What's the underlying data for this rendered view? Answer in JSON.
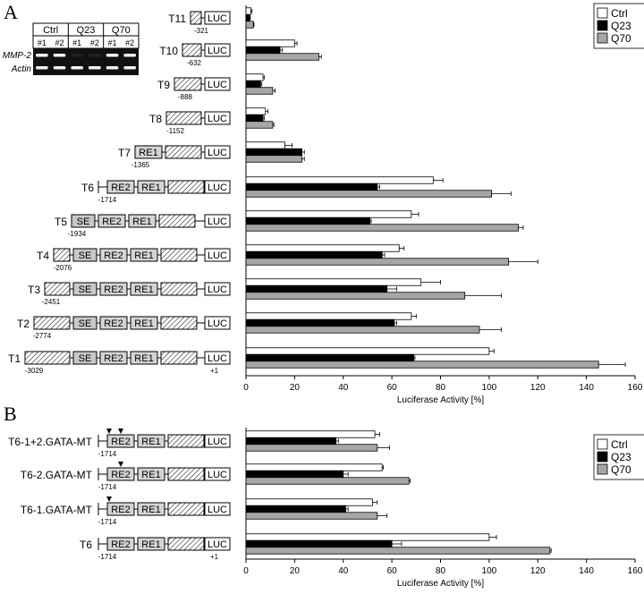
{
  "panels": [
    {
      "letter": "A"
    },
    {
      "letter": "B"
    }
  ],
  "gel": {
    "groups": [
      "Ctrl",
      "Q23",
      "Q70"
    ],
    "lanes": [
      "#1",
      "#2",
      "#1",
      "#2",
      "#1",
      "#2"
    ],
    "rows": [
      "MMP-2",
      "Actin"
    ]
  },
  "elements": {
    "luc": "LUC",
    "re1": "RE1",
    "re2": "RE2",
    "se": "SE",
    "plus1": "+1"
  },
  "chart_data": [
    {
      "type": "bar",
      "panel": "A",
      "orientation": "horizontal",
      "categories": [
        "T11",
        "T10",
        "T9",
        "T8",
        "T7",
        "T6",
        "T5",
        "T4",
        "T3",
        "T2",
        "T1"
      ],
      "positions": [
        "-321",
        "-632",
        "-888",
        "-1152",
        "-1365",
        "-1714",
        "-1934",
        "-2076",
        "-2451",
        "-2774",
        "-3029"
      ],
      "series": [
        {
          "name": "Ctrl",
          "values": [
            2,
            20,
            7,
            8,
            16,
            77,
            68,
            63,
            72,
            68,
            100
          ],
          "errors": [
            0.5,
            1,
            0.5,
            1,
            3,
            4,
            3,
            2,
            8,
            2,
            2
          ]
        },
        {
          "name": "Q23",
          "values": [
            1.5,
            14,
            6,
            7,
            23,
            54,
            51,
            56,
            58,
            61,
            69
          ],
          "errors": [
            0.3,
            1,
            0.5,
            0.5,
            1,
            1,
            0.5,
            1,
            4,
            1,
            0.5
          ]
        },
        {
          "name": "Q70",
          "values": [
            3,
            30,
            11,
            11,
            23,
            101,
            112,
            108,
            90,
            96,
            145
          ],
          "errors": [
            0.3,
            1,
            1,
            0.5,
            1,
            8,
            2,
            12,
            15,
            9,
            11
          ]
        }
      ],
      "xlabel": "Luciferase Activity [%]",
      "xlim": [
        0,
        160
      ],
      "xticks": [
        0,
        20,
        40,
        60,
        80,
        100,
        120,
        140,
        160
      ],
      "legend": "top-right"
    },
    {
      "type": "bar",
      "panel": "B",
      "orientation": "horizontal",
      "categories": [
        "T6-1+2.GATA-MT",
        "T6-2.GATA-MT",
        "T6-1.GATA-MT",
        "T6"
      ],
      "positions": [
        "-1714",
        "-1714",
        "-1714",
        "-1714"
      ],
      "series": [
        {
          "name": "Ctrl",
          "values": [
            53,
            56,
            52,
            100
          ],
          "errors": [
            2,
            0.5,
            2,
            3
          ]
        },
        {
          "name": "Q23",
          "values": [
            37,
            40,
            41,
            60
          ],
          "errors": [
            1,
            2,
            1,
            4
          ]
        },
        {
          "name": "Q70",
          "values": [
            54,
            67,
            54,
            125
          ],
          "errors": [
            5,
            0.5,
            4,
            0.5
          ]
        }
      ],
      "xlabel": "Luciferase Activity [%]",
      "xlim": [
        0,
        160
      ],
      "xticks": [
        0,
        20,
        40,
        60,
        80,
        100,
        120,
        140,
        160
      ],
      "legend": "top-right"
    }
  ]
}
